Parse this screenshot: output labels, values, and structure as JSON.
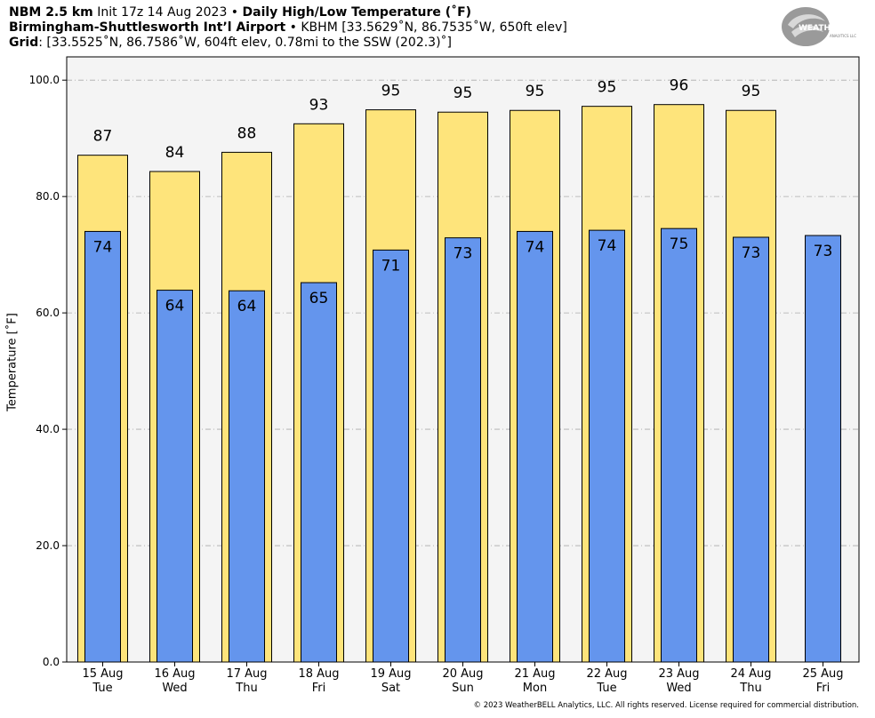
{
  "header": {
    "line1_bold": "NBM 2.5 km",
    "line1_mid": " Init 17z 14 Aug 2023 • ",
    "line1_bold2": "Daily High/Low Temperature (˚F)",
    "line2_bold": "Birmingham-Shuttlesworth Intʼl Airport",
    "line2_rest": " • KBHM [33.5629˚N, 86.7535˚W, 650ft elev]",
    "line3_bold": "Grid",
    "line3_rest": ": [33.5525˚N, 86.7586˚W, 604ft elev, 0.78mi to the SSW (202.3)˚]"
  },
  "logo": {
    "text_main": "WEATHERBELL",
    "text_small": "ANALYTICS LLC"
  },
  "copyright": "© 2023 WeatherBELL Analytics, LLC. All rights reserved. License required for commercial distribution.",
  "colors": {
    "high": "#fee47b",
    "low": "#6495ed",
    "plot_bg": "#f4f4f4"
  },
  "chart_data": {
    "type": "bar",
    "ylabel": "Temperature [˚F]",
    "ylim": [
      0,
      100
    ],
    "yticks": [
      "0.0",
      "20.0",
      "40.0",
      "60.0",
      "80.0",
      "100.0"
    ],
    "grid": true,
    "categories": [
      {
        "date": "15 Aug",
        "day": "Tue"
      },
      {
        "date": "16 Aug",
        "day": "Wed"
      },
      {
        "date": "17 Aug",
        "day": "Thu"
      },
      {
        "date": "18 Aug",
        "day": "Fri"
      },
      {
        "date": "19 Aug",
        "day": "Sat"
      },
      {
        "date": "20 Aug",
        "day": "Sun"
      },
      {
        "date": "21 Aug",
        "day": "Mon"
      },
      {
        "date": "22 Aug",
        "day": "Tue"
      },
      {
        "date": "23 Aug",
        "day": "Wed"
      },
      {
        "date": "24 Aug",
        "day": "Thu"
      },
      {
        "date": "25 Aug",
        "day": "Fri"
      }
    ],
    "series": [
      {
        "values": [
          87.1,
          84.3,
          87.6,
          92.5,
          94.9,
          94.5,
          94.8,
          95.5,
          95.8,
          94.8,
          null
        ],
        "labels": [
          "87",
          "84",
          "88",
          "93",
          "95",
          "95",
          "95",
          "95",
          "96",
          "95",
          ""
        ]
      },
      {
        "values": [
          74.0,
          63.9,
          63.8,
          65.2,
          70.8,
          72.9,
          74.0,
          74.2,
          74.5,
          73.0,
          73.3
        ],
        "labels": [
          "74",
          "64",
          "64",
          "65",
          "71",
          "73",
          "74",
          "74",
          "75",
          "73",
          "73"
        ]
      }
    ]
  }
}
